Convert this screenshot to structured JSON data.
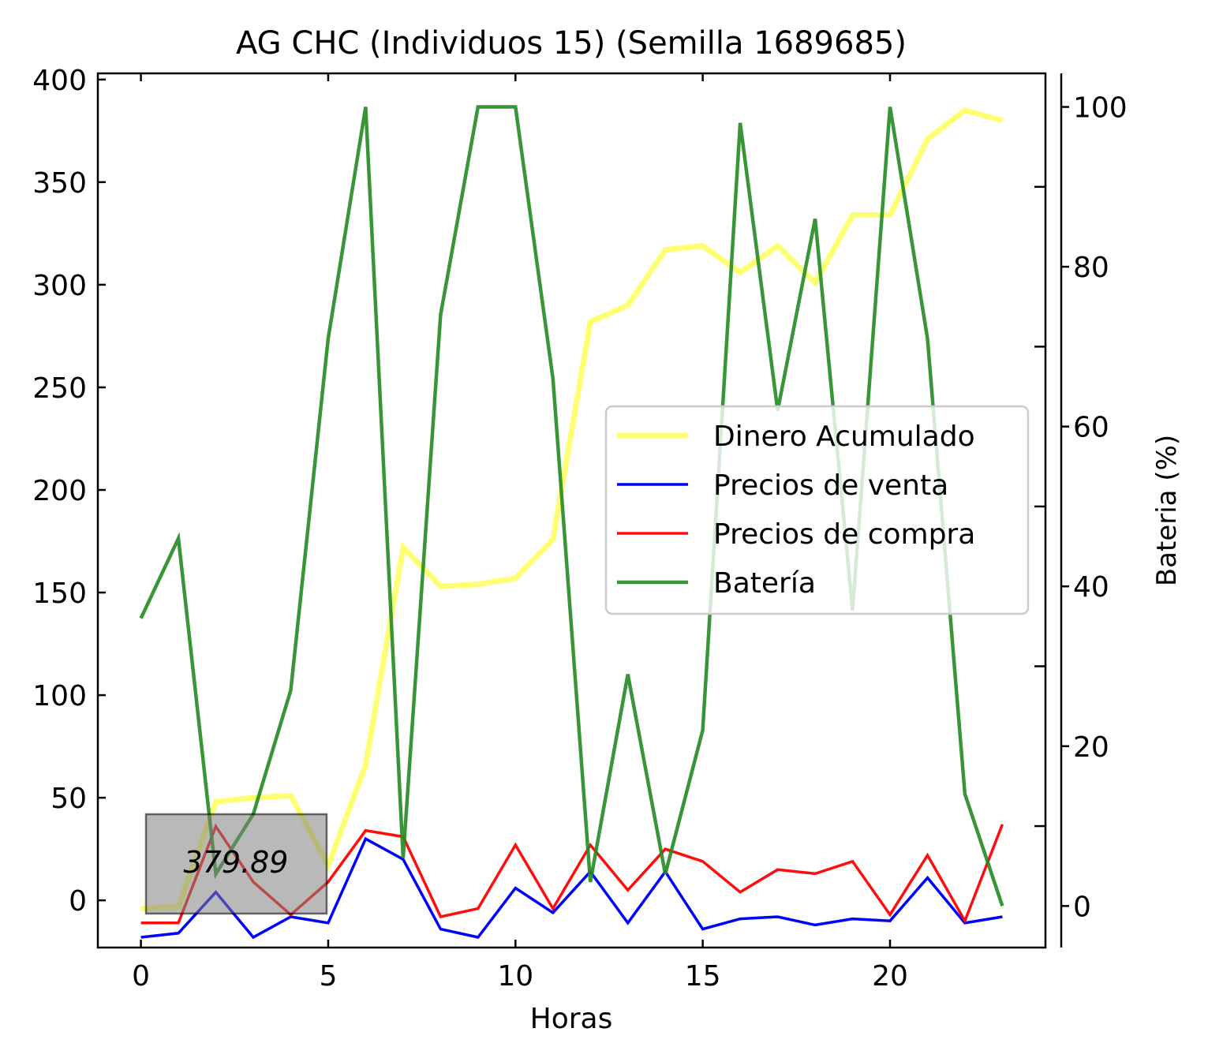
{
  "chart_data": {
    "type": "line",
    "title": "AG CHC (Individuos 15) (Semilla 1689685)",
    "xlabel": "Horas",
    "ylabel": "",
    "ylabel_right": "Bateria (%)",
    "ylabel_right_color": "#008000",
    "xlim": [
      -1.15,
      24.15
    ],
    "ylim": [
      -23,
      403
    ],
    "ylim_right": [
      -5.2,
      104.2
    ],
    "x_ticks": [
      0,
      5,
      10,
      15,
      20
    ],
    "y_ticks": [
      0,
      50,
      100,
      150,
      200,
      250,
      300,
      350,
      400
    ],
    "y_right_ticks": [
      0,
      20,
      40,
      60,
      80,
      100
    ],
    "grid": false,
    "legend_position": "center-right",
    "x": [
      0,
      1,
      2,
      3,
      4,
      5,
      6,
      7,
      8,
      9,
      10,
      11,
      12,
      13,
      14,
      15,
      16,
      17,
      18,
      19,
      20,
      21,
      22,
      23
    ],
    "series": [
      {
        "name": "Dinero Acumulado",
        "axis": "left",
        "color": "#ffff00",
        "values": [
          -4,
          -3,
          48,
          50,
          51,
          17,
          66,
          172,
          153,
          154,
          157,
          176,
          282,
          290,
          317,
          319,
          306,
          319,
          301,
          334,
          334,
          371,
          385,
          380
        ]
      },
      {
        "name": "Precios de venta",
        "axis": "left",
        "color": "#0000ff",
        "values": [
          -18,
          -16,
          4,
          -18,
          -8,
          -11,
          30,
          20,
          -14,
          -18,
          6,
          -6,
          14,
          -11,
          14,
          -14,
          -9,
          -8,
          -12,
          -9,
          -10,
          11,
          -11,
          -8
        ]
      },
      {
        "name": "Precios de compra",
        "axis": "left",
        "color": "#ff0000",
        "values": [
          -11,
          -11,
          36,
          9,
          -7,
          9,
          34,
          31,
          -8,
          -4,
          27,
          -4,
          27,
          5,
          25,
          19,
          4,
          15,
          13,
          19,
          -7,
          22,
          -10,
          37
        ]
      },
      {
        "name": "Batería",
        "axis": "right",
        "color": "#228b22",
        "values": [
          36,
          46,
          4,
          11.5,
          27,
          71,
          100,
          6,
          74,
          100,
          100,
          66,
          3,
          29,
          4,
          22,
          98,
          62,
          86,
          37,
          100,
          71,
          14,
          0
        ]
      }
    ],
    "annotation": {
      "text": "379.89",
      "x": 2.5,
      "y": 18
    }
  }
}
